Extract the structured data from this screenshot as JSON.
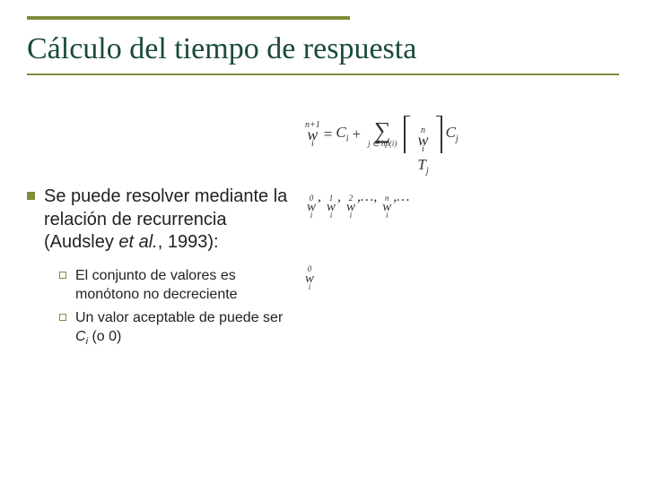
{
  "colors": {
    "accent": "#7f8c3a",
    "title": "#1a4a3a",
    "text": "#222222",
    "formula": "#333333",
    "background": "#ffffff"
  },
  "typography": {
    "title_family": "Times New Roman",
    "title_size_pt": 26,
    "body_family": "Arial",
    "body_size_pt": 15,
    "subbody_size_pt": 12,
    "formula_family": "Times New Roman"
  },
  "title": "Cálculo del tiempo de respuesta",
  "formula": {
    "lhs": {
      "var": "w",
      "sub": "i",
      "sup": "n+1"
    },
    "eq": "=",
    "term1": {
      "var": "C",
      "sub": "i"
    },
    "plus": "+",
    "sum": {
      "symbol": "∑",
      "index": "j ∈ hp(i)"
    },
    "ceil_frac": {
      "num": {
        "var": "w",
        "sub": "i",
        "sup": "n"
      },
      "den": {
        "var": "T",
        "sub": "j"
      }
    },
    "term2": {
      "var": "C",
      "sub": "j"
    }
  },
  "sequence": {
    "items": [
      {
        "var": "w",
        "sub": "i",
        "sup": "0"
      },
      {
        "var": "w",
        "sub": "i",
        "sup": "1"
      },
      {
        "var": "w",
        "sub": "i",
        "sup": "2"
      },
      {
        "dots": ",…,"
      },
      {
        "var": "w",
        "sub": "i",
        "sup": "n"
      },
      {
        "dots": ",…"
      }
    ],
    "sep": ","
  },
  "w0": {
    "var": "w",
    "sub": "i",
    "sup": "0"
  },
  "bullet": {
    "text_pre": "Se puede resolver mediante la relación de recurrencia (Audsley ",
    "text_ital": "et al.",
    "text_post": ", 1993):"
  },
  "sub_bullets": [
    {
      "text": "El conjunto de valores  es monótono no decreciente"
    },
    {
      "pre": "Un valor aceptable de puede ser ",
      "ci": "C",
      "ci_sub": "i",
      "post": " (o 0)"
    }
  ]
}
